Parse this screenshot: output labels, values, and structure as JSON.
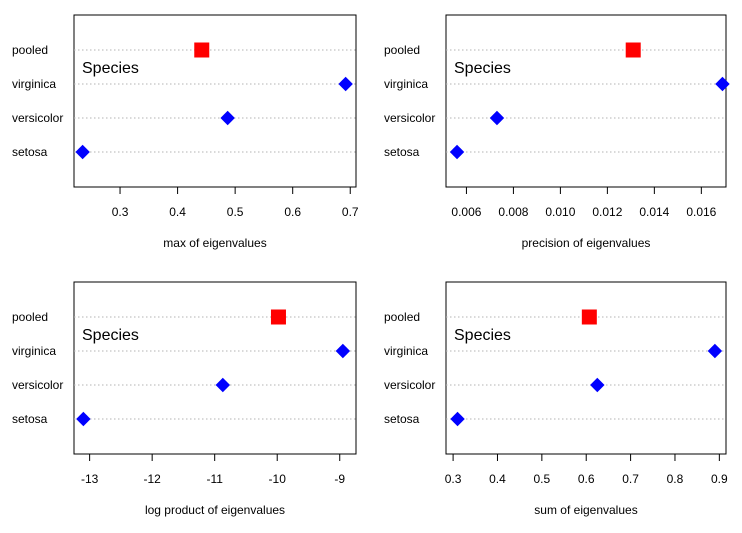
{
  "chart_data": [
    {
      "type": "dotplot",
      "group_title": "Species",
      "categories": [
        "pooled",
        "virginica",
        "versicolor",
        "setosa"
      ],
      "values": [
        0.442,
        0.692,
        0.487,
        0.235
      ],
      "highlight": "pooled",
      "xlabel": "max of eigenvalues",
      "xlim": [
        0.22,
        0.71
      ],
      "ticks": [
        0.3,
        0.4,
        0.5,
        0.6,
        0.7
      ],
      "tick_labels": [
        "0.3",
        "0.4",
        "0.5",
        "0.6",
        "0.7"
      ]
    },
    {
      "type": "dotplot",
      "group_title": "Species",
      "categories": [
        "pooled",
        "virginica",
        "versicolor",
        "setosa"
      ],
      "values": [
        0.0131,
        0.0169,
        0.0073,
        0.0056
      ],
      "highlight": "pooled",
      "xlabel": "precision of eigenvalues",
      "xlim": [
        0.00513,
        0.01705
      ],
      "ticks": [
        0.006,
        0.008,
        0.01,
        0.012,
        0.014,
        0.016
      ],
      "tick_labels": [
        "0.006",
        "0.008",
        "0.010",
        "0.012",
        "0.014",
        "0.016"
      ]
    },
    {
      "type": "dotplot",
      "group_title": "Species",
      "categories": [
        "pooled",
        "virginica",
        "versicolor",
        "setosa"
      ],
      "values": [
        -9.98,
        -8.95,
        -10.87,
        -13.1
      ],
      "highlight": "pooled",
      "xlabel": "log product of eigenvalues",
      "xlim": [
        -13.25,
        -8.74
      ],
      "ticks": [
        -13,
        -12,
        -11,
        -10,
        -9
      ],
      "tick_labels": [
        "-13",
        "-12",
        "-11",
        "-10",
        "-9"
      ]
    },
    {
      "type": "dotplot",
      "group_title": "Species",
      "categories": [
        "pooled",
        "virginica",
        "versicolor",
        "setosa"
      ],
      "values": [
        0.607,
        0.89,
        0.625,
        0.31
      ],
      "highlight": "pooled",
      "xlabel": "sum of eigenvalues",
      "xlim": [
        0.284,
        0.915
      ],
      "ticks": [
        0.3,
        0.4,
        0.5,
        0.6,
        0.7,
        0.8,
        0.9
      ],
      "tick_labels": [
        "0.3",
        "0.4",
        "0.5",
        "0.6",
        "0.7",
        "0.8",
        "0.9"
      ]
    }
  ],
  "colors": {
    "highlight": "#ff0000",
    "point": "#0000ff",
    "guide": "#b3b3b3"
  }
}
